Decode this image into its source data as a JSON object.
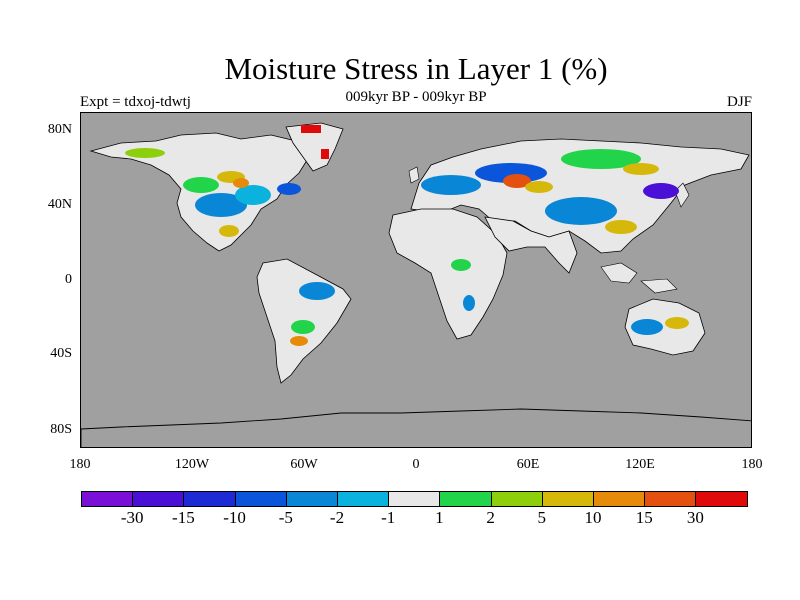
{
  "title": "Moisture Stress in Layer 1 (%)",
  "subtitle": "009kyr BP - 009kyr BP",
  "left_label": "Expt = tdxoj-tdwtj",
  "right_label": "DJF",
  "lat_labels": [
    "80N",
    "40N",
    "0",
    "40S",
    "80S"
  ],
  "lon_labels": [
    "180",
    "120W",
    "60W",
    "0",
    "60E",
    "120E",
    "180"
  ],
  "colorbar": {
    "colors": [
      "#7a10d6",
      "#4a10d6",
      "#1e2ad6",
      "#0a55d9",
      "#0a86d6",
      "#0ab2dd",
      "#e8e8e8",
      "#22d44a",
      "#8ccf0a",
      "#d6b80a",
      "#e68a0a",
      "#e35010",
      "#e00a0a"
    ],
    "labels": [
      "-30",
      "-15",
      "-10",
      "-5",
      "-2",
      "-1",
      "1",
      "2",
      "5",
      "10",
      "15",
      "30"
    ]
  },
  "map_colors": {
    "ocean": "#a0a0a0",
    "land_neutral": "#e8e8e8",
    "coastline": "#000000"
  }
}
